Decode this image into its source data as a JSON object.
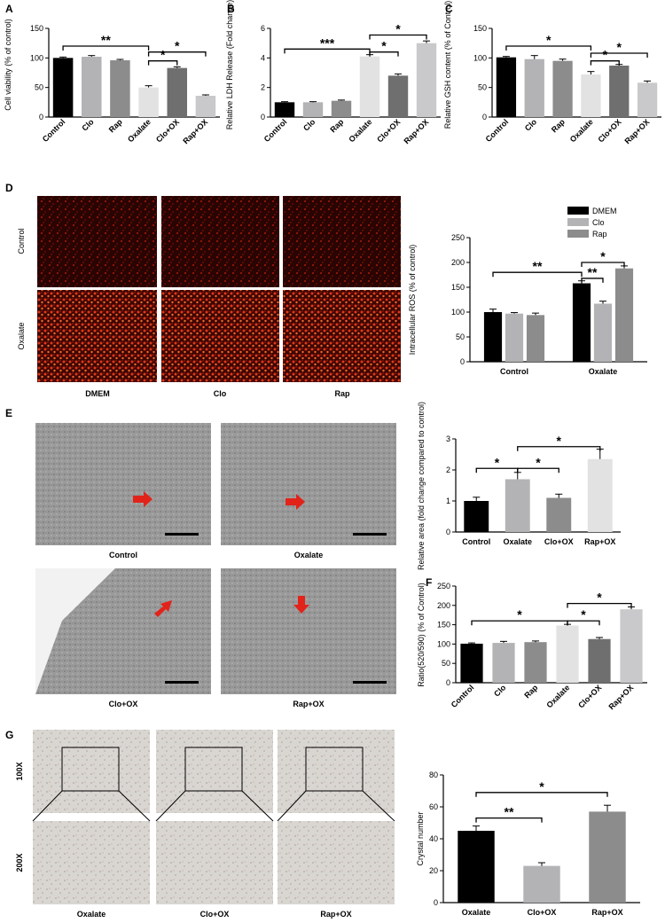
{
  "figure": {
    "panels": [
      {
        "letter": "A"
      },
      {
        "letter": "B"
      },
      {
        "letter": "C"
      },
      {
        "letter": "D"
      },
      {
        "letter": "E"
      },
      {
        "letter": "F"
      },
      {
        "letter": "G"
      }
    ],
    "panel_D_images": {
      "row_labels": [
        "Control",
        "Oxalate"
      ],
      "col_labels": [
        "DMEM",
        "Clo",
        "Rap"
      ]
    },
    "panel_E_images": {
      "captions": [
        "Control",
        "Oxalate",
        "Clo+OX",
        "Rap+OX"
      ]
    },
    "panel_G_images": {
      "row_labels": [
        "100X",
        "200X"
      ],
      "col_labels": [
        "Oxalate",
        "Clo+OX",
        "Rap+OX"
      ]
    }
  },
  "colors": {
    "black": "#000000",
    "light_gray": "#b3b3b6",
    "mid_gray": "#8c8c8c",
    "very_light": "#e2e2e2",
    "dark_gray": "#6f6f6f",
    "lighter_gray": "#c9c9cc",
    "arrow_red": "#e2231a"
  },
  "chart_data": [
    {
      "id": "A",
      "type": "bar",
      "categories": [
        "Control",
        "Clo",
        "Rap",
        "Oxalate",
        "Clo+OX",
        "Rap+OX"
      ],
      "values": [
        100,
        102,
        96,
        50,
        83,
        36
      ],
      "errors": [
        1.5,
        2,
        1.5,
        3,
        2,
        1.5
      ],
      "ylabel": "Cell viability (% of control)",
      "ylim": [
        0,
        150
      ],
      "yticks": [
        0,
        50,
        100,
        150
      ],
      "significance": [
        {
          "from": 0,
          "to": 3,
          "label": "**",
          "y": 120
        },
        {
          "from": 3,
          "to": 4,
          "label": "*",
          "y": 95
        },
        {
          "from": 3,
          "to": 5,
          "label": "*",
          "y": 110
        }
      ]
    },
    {
      "id": "B",
      "type": "bar",
      "categories": [
        "Control",
        "Clo",
        "Rap",
        "Oxalate",
        "Clo+OX",
        "Rap+OX"
      ],
      "values": [
        1.0,
        1.0,
        1.1,
        4.1,
        2.8,
        5.0
      ],
      "errors": [
        0.04,
        0.04,
        0.05,
        0.12,
        0.12,
        0.15
      ],
      "ylabel": "Relative LDH Release (Fold change)",
      "ylim": [
        0,
        6
      ],
      "yticks": [
        0,
        2,
        4,
        6
      ],
      "significance": [
        {
          "from": 0,
          "to": 3,
          "label": "***",
          "y": 4.6
        },
        {
          "from": 3,
          "to": 4,
          "label": "*",
          "y": 4.4
        },
        {
          "from": 3,
          "to": 5,
          "label": "*",
          "y": 5.55
        }
      ]
    },
    {
      "id": "C",
      "type": "bar",
      "categories": [
        "Control",
        "Clo",
        "Rap",
        "Oxalate",
        "Clo+OX",
        "Rap+OX"
      ],
      "values": [
        101,
        98,
        95,
        72,
        87,
        58
      ],
      "errors": [
        1.5,
        6,
        3,
        5,
        2,
        3
      ],
      "ylabel": "Relative GSH content (% of Control)",
      "ylim": [
        0,
        150
      ],
      "yticks": [
        0,
        50,
        100,
        150
      ],
      "significance": [
        {
          "from": 0,
          "to": 3,
          "label": "*",
          "y": 120
        },
        {
          "from": 3,
          "to": 4,
          "label": "*",
          "y": 95
        },
        {
          "from": 3,
          "to": 5,
          "label": "*",
          "y": 108
        }
      ]
    },
    {
      "id": "D",
      "type": "bar",
      "categories": [
        "Control",
        "Oxalate"
      ],
      "series": [
        {
          "name": "DMEM",
          "values": [
            100,
            158
          ],
          "errors": [
            6,
            5
          ]
        },
        {
          "name": "Clo",
          "values": [
            97,
            117
          ],
          "errors": [
            2,
            5
          ]
        },
        {
          "name": "Rap",
          "values": [
            94,
            188
          ],
          "errors": [
            4,
            5
          ]
        }
      ],
      "ylabel": "Intracellular ROS (% of control)",
      "ylim": [
        0,
        250
      ],
      "yticks": [
        0,
        50,
        100,
        150,
        200,
        250
      ],
      "legend": "top-right",
      "significance": [
        {
          "from": [
            0,
            0
          ],
          "to": [
            1,
            0
          ],
          "label": "**",
          "y": 180
        },
        {
          "from": [
            1,
            0
          ],
          "to": [
            1,
            1
          ],
          "label": "**",
          "y": 168
        },
        {
          "from": [
            1,
            0
          ],
          "to": [
            1,
            2
          ],
          "label": "*",
          "y": 200
        }
      ]
    },
    {
      "id": "E",
      "type": "bar",
      "categories": [
        "Control",
        "Oxalate",
        "Clo+OX",
        "Rap+OX"
      ],
      "values": [
        1.0,
        1.7,
        1.1,
        2.35
      ],
      "errors": [
        0.12,
        0.22,
        0.12,
        0.32
      ],
      "ylabel": "Relative area (fold change compared to control)",
      "ylim": [
        0,
        3
      ],
      "yticks": [
        0,
        1,
        2,
        3
      ],
      "significance": [
        {
          "from": 0,
          "to": 1,
          "label": "*",
          "y": 2.05
        },
        {
          "from": 1,
          "to": 2,
          "label": "*",
          "y": 2.05
        },
        {
          "from": 1,
          "to": 3,
          "label": "*",
          "y": 2.75
        }
      ]
    },
    {
      "id": "F",
      "type": "bar",
      "categories": [
        "Control",
        "Clo",
        "Rap",
        "Oxalate",
        "Clo+OX",
        "Rap+OX"
      ],
      "values": [
        101,
        103,
        105,
        148,
        113,
        190
      ],
      "errors": [
        2,
        4,
        3,
        3,
        4,
        6
      ],
      "ylabel": "Ratio(520/590) (% of Control)",
      "ylim": [
        0,
        250
      ],
      "yticks": [
        0,
        50,
        100,
        150,
        200,
        250
      ],
      "significance": [
        {
          "from": 0,
          "to": 3,
          "label": "*",
          "y": 160
        },
        {
          "from": 3,
          "to": 4,
          "label": "*",
          "y": 160
        },
        {
          "from": 3,
          "to": 5,
          "label": "*",
          "y": 205
        }
      ]
    },
    {
      "id": "G",
      "type": "bar",
      "categories": [
        "Oxalate",
        "Clo+OX",
        "Rap+OX"
      ],
      "values": [
        45,
        23,
        57
      ],
      "errors": [
        3,
        2,
        4
      ],
      "ylabel": "Crystal number",
      "ylim": [
        0,
        80
      ],
      "yticks": [
        0,
        20,
        40,
        60,
        80
      ],
      "significance": [
        {
          "from": 0,
          "to": 1,
          "label": "**",
          "y": 53
        },
        {
          "from": 0,
          "to": 2,
          "label": "*",
          "y": 69
        }
      ]
    }
  ]
}
